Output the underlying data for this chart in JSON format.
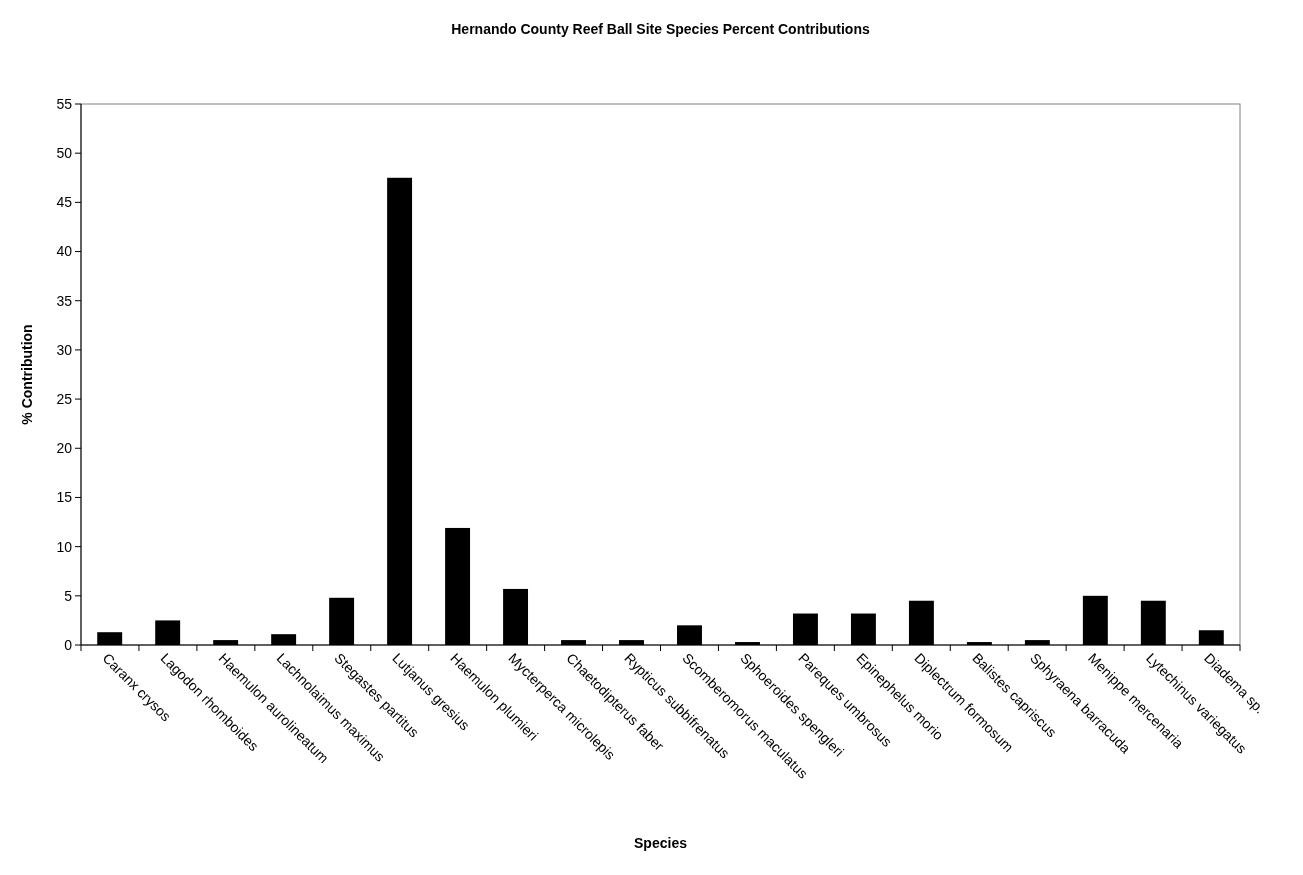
{
  "chart_data": {
    "type": "bar",
    "title": "Hernando County Reef Ball Site Species Percent Contributions",
    "xlabel": "Species",
    "ylabel": "% Contribution",
    "categories": [
      "Caranx crysos",
      "Lagodon rhomboides",
      "Haemulon aurolineatum",
      "Lachnolaimus maximus",
      "Stegastes partitus",
      "Lutjanus gresius",
      "Haemulon plumieri",
      "Mycterperca microlepis",
      "Chaetodipterus faber",
      "Rypticus subbifrenatus",
      "Scomberomorus maculatus",
      "Sphoeroides spengleri",
      "Pareques umbrosus",
      "Epinephelus morio",
      "Diplectrum formosum",
      "Balistes capriscus",
      "Sphyraena barracuda",
      "Menippe mercenaria",
      "Lytechinus variegatus",
      "Diadema sp."
    ],
    "values": [
      1.3,
      2.5,
      0.5,
      1.1,
      4.8,
      47.5,
      11.9,
      5.7,
      0.5,
      0.5,
      2.0,
      0.3,
      3.2,
      3.2,
      4.5,
      0.3,
      0.5,
      5.0,
      4.5,
      1.5
    ],
    "color": "#000000",
    "ylim": [
      0,
      55
    ],
    "yticks": [
      0,
      5,
      10,
      15,
      20,
      25,
      30,
      35,
      40,
      45,
      50,
      55
    ],
    "grid": false
  }
}
